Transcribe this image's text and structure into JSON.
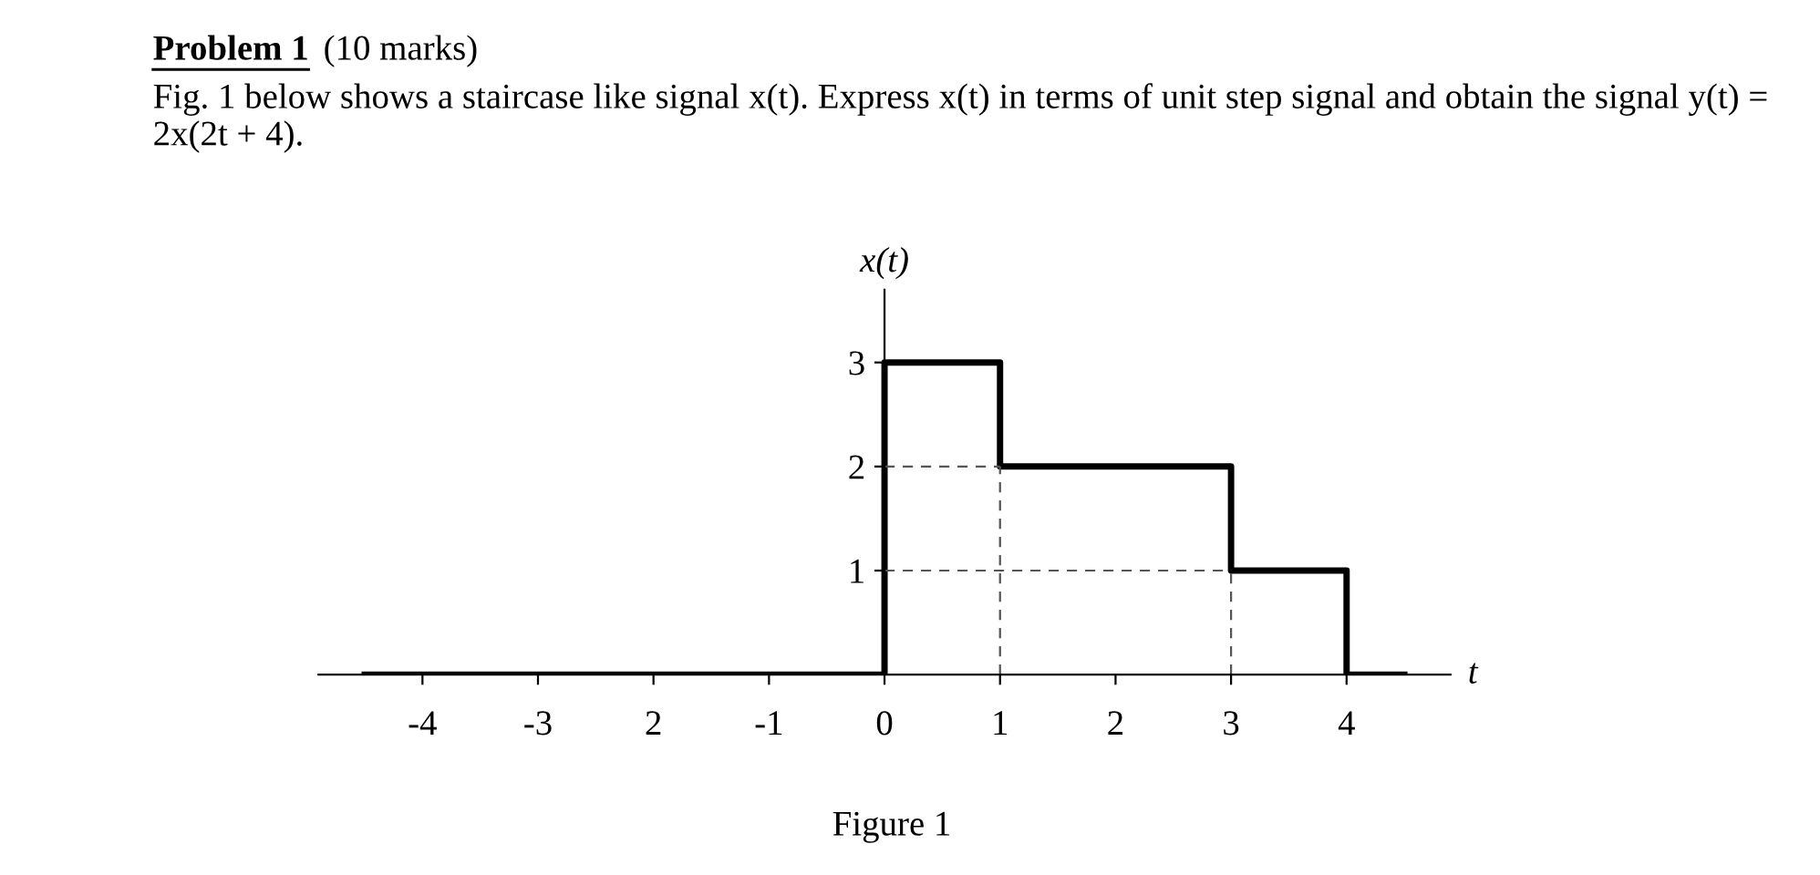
{
  "chart_data": {
    "type": "step",
    "title": "Problem 1",
    "subtitle": "(10 marks)",
    "annotations": [
      "Fig. 1 below shows a staircase like signal x(t). Express x(t) in terms of unit step signal and obtain the signal y(t) = 2x(2t + 4).",
      "Figure 1"
    ],
    "xlabel": "t",
    "ylabel": "x(t)",
    "series": [
      {
        "x": [
          -4.5,
          0,
          1,
          3,
          4,
          4.5
        ],
        "values": [
          0,
          3,
          2,
          1,
          0,
          0
        ],
        "color": "#000000"
      }
    ],
    "xlim": [
      -4.9,
      4.9
    ],
    "ylim": [
      0,
      3.7
    ],
    "xticks": [
      {
        "value": -4,
        "label": "-4"
      },
      {
        "value": -3,
        "label": "-3"
      },
      {
        "value": -2,
        "label": "2"
      },
      {
        "value": -1,
        "label": "-1"
      },
      0,
      1,
      2,
      3,
      4
    ],
    "yticks": [
      1,
      2,
      3
    ],
    "ref_lines": [
      {
        "axis": "y",
        "value": 2,
        "line_style": "dashed"
      },
      {
        "axis": "y",
        "value": 1,
        "line_style": "dashed"
      },
      {
        "axis": "x",
        "value": 1,
        "line_style": "dashed"
      },
      {
        "axis": "x",
        "value": 3,
        "line_style": "dashed"
      }
    ],
    "grid": false,
    "legend": false
  }
}
